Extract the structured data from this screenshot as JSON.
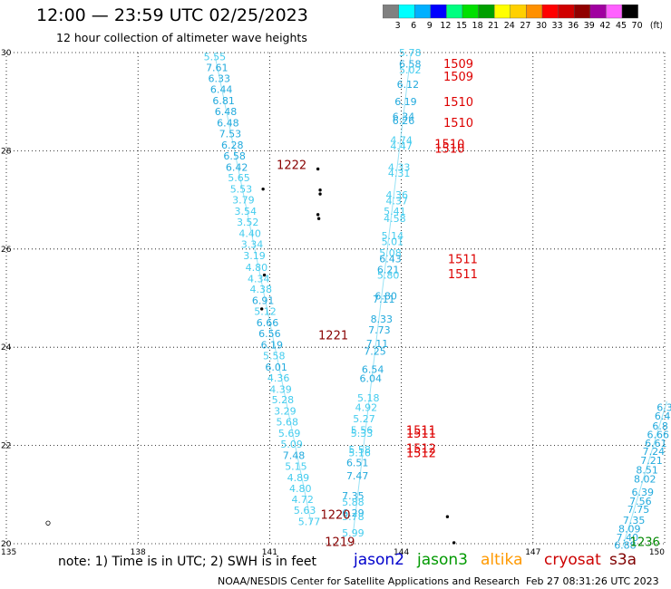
{
  "header": {
    "title": "12:00 — 23:59 UTC 02/25/2023",
    "subtitle": "12 hour collection of altimeter wave heights"
  },
  "colorbar": {
    "labels": [
      "3",
      "6",
      "9",
      "12",
      "15",
      "18",
      "21",
      "24",
      "27",
      "30",
      "33",
      "36",
      "39",
      "42",
      "45",
      "70"
    ],
    "unit": "(ft)",
    "colors": [
      "#808080",
      "#00ffff",
      "#00b0ff",
      "#0000ff",
      "#00ff80",
      "#00e000",
      "#00a000",
      "#ffff00",
      "#ffd000",
      "#ff9000",
      "#ff0000",
      "#d00000",
      "#900000",
      "#a000a0",
      "#ff60ff",
      "#000000"
    ]
  },
  "footer": {
    "note": "note:  1) Time is in UTC;  2) SWH is in feet",
    "legend": [
      {
        "label": "jason2",
        "color": "#0000cc"
      },
      {
        "label": "jason3",
        "color": "#009900"
      },
      {
        "label": "altika",
        "color": "#ff9900"
      },
      {
        "label": "cryosat",
        "color": "#cc0000"
      },
      {
        "label": "s3a",
        "color": "#800000"
      }
    ],
    "credit": "NOAA/NESDIS Center for Satellite Applications and Research",
    "timestamp": "Feb 27 08:31:26 UTC 2023"
  },
  "chart_data": {
    "type": "scatter",
    "xlim": [
      135,
      150
    ],
    "ylim": [
      20,
      30
    ],
    "xticks": [
      "135",
      "138",
      "141",
      "144",
      "147",
      "150"
    ],
    "yticks": [
      "20",
      "22",
      "24",
      "26",
      "28",
      "30"
    ],
    "swh_colors": {
      "lt6": "#44ccee",
      "ge6": "#22aadd",
      "track": "#000000"
    },
    "swh_labels": [
      {
        "lon": 139.75,
        "lat": 29.92,
        "v": "5.55"
      },
      {
        "lon": 139.8,
        "lat": 29.7,
        "v": "7.61"
      },
      {
        "lon": 139.85,
        "lat": 29.47,
        "v": "6.33"
      },
      {
        "lon": 139.9,
        "lat": 29.25,
        "v": "6.44"
      },
      {
        "lon": 139.95,
        "lat": 29.02,
        "v": "6.81"
      },
      {
        "lon": 140.0,
        "lat": 28.8,
        "v": "6.48"
      },
      {
        "lon": 140.05,
        "lat": 28.57,
        "v": "6.48"
      },
      {
        "lon": 140.1,
        "lat": 28.35,
        "v": "7.53"
      },
      {
        "lon": 140.15,
        "lat": 28.12,
        "v": "6.28"
      },
      {
        "lon": 140.2,
        "lat": 27.9,
        "v": "6.58"
      },
      {
        "lon": 140.25,
        "lat": 27.67,
        "v": "6.42"
      },
      {
        "lon": 140.3,
        "lat": 27.45,
        "v": "5.65"
      },
      {
        "lon": 140.35,
        "lat": 27.22,
        "v": "5.53"
      },
      {
        "lon": 140.4,
        "lat": 27.0,
        "v": "3.79"
      },
      {
        "lon": 140.45,
        "lat": 26.77,
        "v": "3.54"
      },
      {
        "lon": 140.5,
        "lat": 26.55,
        "v": "3.52"
      },
      {
        "lon": 140.55,
        "lat": 26.32,
        "v": "4.40"
      },
      {
        "lon": 140.6,
        "lat": 26.1,
        "v": "3.34"
      },
      {
        "lon": 140.65,
        "lat": 25.87,
        "v": "3.19"
      },
      {
        "lon": 140.7,
        "lat": 25.63,
        "v": "4.80"
      },
      {
        "lon": 140.75,
        "lat": 25.4,
        "v": "4.34"
      },
      {
        "lon": 140.8,
        "lat": 25.18,
        "v": "4.38"
      },
      {
        "lon": 140.85,
        "lat": 24.95,
        "v": "6.91"
      },
      {
        "lon": 140.9,
        "lat": 24.73,
        "v": "5.12"
      },
      {
        "lon": 140.95,
        "lat": 24.5,
        "v": "6.66"
      },
      {
        "lon": 141.0,
        "lat": 24.28,
        "v": "6.56"
      },
      {
        "lon": 141.05,
        "lat": 24.05,
        "v": "6.19"
      },
      {
        "lon": 141.1,
        "lat": 23.83,
        "v": "5.58"
      },
      {
        "lon": 141.15,
        "lat": 23.6,
        "v": "6.01"
      },
      {
        "lon": 141.2,
        "lat": 23.38,
        "v": "4.36"
      },
      {
        "lon": 141.25,
        "lat": 23.15,
        "v": "4.39"
      },
      {
        "lon": 141.3,
        "lat": 22.93,
        "v": "5.28"
      },
      {
        "lon": 141.35,
        "lat": 22.7,
        "v": "3.29"
      },
      {
        "lon": 141.4,
        "lat": 22.48,
        "v": "5.68"
      },
      {
        "lon": 141.45,
        "lat": 22.25,
        "v": "5.69"
      },
      {
        "lon": 141.5,
        "lat": 22.03,
        "v": "5.09"
      },
      {
        "lon": 141.55,
        "lat": 21.8,
        "v": "7.48"
      },
      {
        "lon": 141.6,
        "lat": 21.58,
        "v": "5.15"
      },
      {
        "lon": 141.65,
        "lat": 21.35,
        "v": "4.89"
      },
      {
        "lon": 141.7,
        "lat": 21.13,
        "v": "4.80"
      },
      {
        "lon": 141.75,
        "lat": 20.9,
        "v": "4.72"
      },
      {
        "lon": 141.8,
        "lat": 20.68,
        "v": "5.63"
      },
      {
        "lon": 141.9,
        "lat": 20.45,
        "v": "5.77"
      },
      {
        "lon": 144.2,
        "lat": 30.0,
        "v": "5.78"
      },
      {
        "lon": 144.2,
        "lat": 29.77,
        "v": "6.58"
      },
      {
        "lon": 144.2,
        "lat": 29.65,
        "v": "5.02"
      },
      {
        "lon": 144.15,
        "lat": 29.35,
        "v": "6.12"
      },
      {
        "lon": 144.1,
        "lat": 29.0,
        "v": "6.19"
      },
      {
        "lon": 144.05,
        "lat": 28.7,
        "v": "6.34"
      },
      {
        "lon": 144.05,
        "lat": 28.62,
        "v": "6.26"
      },
      {
        "lon": 144.0,
        "lat": 28.22,
        "v": "4.74"
      },
      {
        "lon": 144.0,
        "lat": 28.1,
        "v": "4.47"
      },
      {
        "lon": 143.95,
        "lat": 27.67,
        "v": "4.33"
      },
      {
        "lon": 143.95,
        "lat": 27.55,
        "v": "4.31"
      },
      {
        "lon": 143.9,
        "lat": 27.1,
        "v": "4.36"
      },
      {
        "lon": 143.9,
        "lat": 26.98,
        "v": "4.37"
      },
      {
        "lon": 143.85,
        "lat": 26.77,
        "v": "5.41"
      },
      {
        "lon": 143.85,
        "lat": 26.62,
        "v": "4.58"
      },
      {
        "lon": 143.8,
        "lat": 26.27,
        "v": "5.14"
      },
      {
        "lon": 143.8,
        "lat": 26.15,
        "v": "5.01"
      },
      {
        "lon": 143.75,
        "lat": 25.92,
        "v": "5.08"
      },
      {
        "lon": 143.75,
        "lat": 25.8,
        "v": "6.43"
      },
      {
        "lon": 143.7,
        "lat": 25.58,
        "v": "6.21"
      },
      {
        "lon": 143.7,
        "lat": 25.47,
        "v": "5.80"
      },
      {
        "lon": 143.65,
        "lat": 25.05,
        "v": "6.80"
      },
      {
        "lon": 143.6,
        "lat": 24.98,
        "v": "7.11"
      },
      {
        "lon": 143.55,
        "lat": 24.58,
        "v": "8.33"
      },
      {
        "lon": 143.5,
        "lat": 24.35,
        "v": "7.73"
      },
      {
        "lon": 143.45,
        "lat": 24.08,
        "v": "7.11"
      },
      {
        "lon": 143.4,
        "lat": 23.92,
        "v": "7.25"
      },
      {
        "lon": 143.35,
        "lat": 23.55,
        "v": "6.54"
      },
      {
        "lon": 143.3,
        "lat": 23.37,
        "v": "6.04"
      },
      {
        "lon": 143.25,
        "lat": 22.97,
        "v": "5.18"
      },
      {
        "lon": 143.2,
        "lat": 22.78,
        "v": "4.92"
      },
      {
        "lon": 143.15,
        "lat": 22.55,
        "v": "5.27"
      },
      {
        "lon": 143.1,
        "lat": 22.32,
        "v": "5.56"
      },
      {
        "lon": 143.1,
        "lat": 22.25,
        "v": "5.33"
      },
      {
        "lon": 143.05,
        "lat": 21.92,
        "v": "5.58"
      },
      {
        "lon": 143.05,
        "lat": 21.85,
        "v": "5.16"
      },
      {
        "lon": 143.0,
        "lat": 21.65,
        "v": "6.51"
      },
      {
        "lon": 143.0,
        "lat": 21.38,
        "v": "7.47"
      },
      {
        "lon": 142.9,
        "lat": 20.98,
        "v": "7.35"
      },
      {
        "lon": 142.9,
        "lat": 20.85,
        "v": "5.88"
      },
      {
        "lon": 142.9,
        "lat": 20.63,
        "v": "6.29"
      },
      {
        "lon": 142.9,
        "lat": 20.55,
        "v": "5.78"
      },
      {
        "lon": 142.9,
        "lat": 20.22,
        "v": "5.99"
      },
      {
        "lon": 150.0,
        "lat": 22.78,
        "v": "6.3"
      },
      {
        "lon": 149.95,
        "lat": 22.6,
        "v": "6.4"
      },
      {
        "lon": 149.9,
        "lat": 22.4,
        "v": "6.8"
      },
      {
        "lon": 149.85,
        "lat": 22.22,
        "v": "6.66"
      },
      {
        "lon": 149.8,
        "lat": 22.05,
        "v": "6.61"
      },
      {
        "lon": 149.75,
        "lat": 21.88,
        "v": "7.24"
      },
      {
        "lon": 149.7,
        "lat": 21.7,
        "v": "7.21"
      },
      {
        "lon": 149.6,
        "lat": 21.5,
        "v": "8.51"
      },
      {
        "lon": 149.55,
        "lat": 21.32,
        "v": "8.02"
      },
      {
        "lon": 149.5,
        "lat": 21.05,
        "v": "6.39"
      },
      {
        "lon": 149.45,
        "lat": 20.87,
        "v": "7.56"
      },
      {
        "lon": 149.4,
        "lat": 20.7,
        "v": "7.75"
      },
      {
        "lon": 149.3,
        "lat": 20.48,
        "v": "7.35"
      },
      {
        "lon": 149.2,
        "lat": 20.3,
        "v": "8.09"
      },
      {
        "lon": 149.15,
        "lat": 20.13,
        "v": "7.40"
      },
      {
        "lon": 149.1,
        "lat": 19.97,
        "v": "6.88"
      }
    ],
    "time_labels": [
      {
        "lon": 145.3,
        "lat": 29.78,
        "t": "1509",
        "sat": "cryosat"
      },
      {
        "lon": 145.3,
        "lat": 29.52,
        "t": "1509",
        "sat": "cryosat"
      },
      {
        "lon": 145.3,
        "lat": 29.0,
        "t": "1510",
        "sat": "cryosat"
      },
      {
        "lon": 145.3,
        "lat": 28.58,
        "t": "1510",
        "sat": "cryosat"
      },
      {
        "lon": 145.1,
        "lat": 28.15,
        "t": "1510",
        "sat": "cryosat"
      },
      {
        "lon": 145.1,
        "lat": 28.05,
        "t": "1510",
        "sat": "cryosat"
      },
      {
        "lon": 141.5,
        "lat": 27.72,
        "t": "1222",
        "sat": "s3a"
      },
      {
        "lon": 145.4,
        "lat": 25.8,
        "t": "1511",
        "sat": "cryosat"
      },
      {
        "lon": 145.4,
        "lat": 25.5,
        "t": "1511",
        "sat": "cryosat"
      },
      {
        "lon": 142.45,
        "lat": 24.25,
        "t": "1221",
        "sat": "s3a"
      },
      {
        "lon": 144.45,
        "lat": 22.32,
        "t": "1511",
        "sat": "cryosat"
      },
      {
        "lon": 144.45,
        "lat": 22.25,
        "t": "1511",
        "sat": "cryosat"
      },
      {
        "lon": 144.45,
        "lat": 21.95,
        "t": "1512",
        "sat": "cryosat"
      },
      {
        "lon": 144.45,
        "lat": 21.85,
        "t": "1512",
        "sat": "cryosat"
      },
      {
        "lon": 142.5,
        "lat": 20.6,
        "t": "1220",
        "sat": "s3a"
      },
      {
        "lon": 142.6,
        "lat": 20.05,
        "t": "1219",
        "sat": "s3a"
      },
      {
        "lon": 149.55,
        "lat": 20.05,
        "t": "1236",
        "sat": "jason3"
      }
    ],
    "land_points": [
      {
        "lon": 135.95,
        "lat": 20.42
      },
      {
        "lon": 142.1,
        "lat": 27.63
      },
      {
        "lon": 142.15,
        "lat": 27.2
      },
      {
        "lon": 142.15,
        "lat": 27.12
      },
      {
        "lon": 142.1,
        "lat": 26.7
      },
      {
        "lon": 142.12,
        "lat": 26.62
      },
      {
        "lon": 140.88,
        "lat": 25.47
      },
      {
        "lon": 140.82,
        "lat": 24.78
      },
      {
        "lon": 140.85,
        "lat": 27.22
      },
      {
        "lon": 145.05,
        "lat": 20.55
      },
      {
        "lon": 145.2,
        "lat": 20.02
      }
    ]
  }
}
